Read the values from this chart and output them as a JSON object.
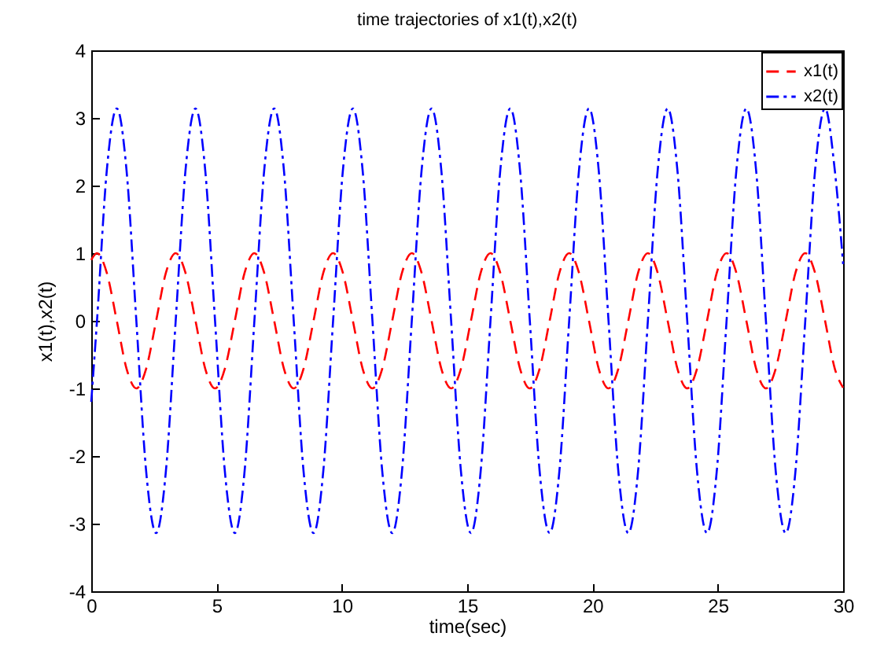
{
  "chart_data": {
    "type": "line",
    "title": "time trajectories of x1(t),x2(t)",
    "xlabel": "time(sec)",
    "ylabel": "x1(t),x2(t)",
    "x": [
      0,
      0.23,
      0.62,
      1.02,
      1.41,
      1.8,
      2.19,
      2.59,
      2.98,
      3.37,
      3.76,
      4.16,
      4.55,
      4.94,
      5.33,
      5.73,
      6.12,
      6.51,
      6.9,
      7.3,
      7.69,
      8.08,
      8.47,
      8.87,
      9.26,
      9.65,
      10.04,
      10.44,
      10.83,
      11.22,
      11.61,
      12.01,
      12.4,
      12.79,
      13.18,
      13.58,
      13.97,
      14.36,
      14.75,
      15.15,
      15.54,
      15.93,
      16.32,
      16.72,
      17.11,
      17.5,
      17.89,
      18.29,
      18.68,
      19.07,
      19.46,
      19.86,
      20.25,
      20.64,
      21.03,
      21.43,
      21.82,
      22.21,
      22.6,
      23.0,
      23.39,
      23.78,
      24.17,
      24.57,
      24.96,
      25.35,
      25.74,
      26.14,
      26.53,
      26.92,
      27.31,
      27.71,
      28.1,
      28.49,
      28.88,
      29.28,
      29.67,
      30
    ],
    "series": [
      {
        "name": "x1(t)",
        "color": "#ff0000",
        "line_style": "dashed",
        "values": [
          0.9,
          1,
          0.71,
          0,
          -0.71,
          -1,
          -0.71,
          0,
          0.71,
          1,
          0.71,
          0,
          -0.71,
          -1,
          -0.71,
          0,
          0.71,
          1,
          0.71,
          0,
          -0.71,
          -1,
          -0.71,
          0,
          0.71,
          1,
          0.71,
          0,
          -0.71,
          -1,
          -0.71,
          0,
          0.71,
          1,
          0.71,
          0,
          -0.71,
          -1,
          -0.71,
          0,
          0.71,
          1,
          0.71,
          0,
          -0.71,
          -1,
          -0.71,
          0,
          0.71,
          1,
          0.71,
          0,
          -0.71,
          -1,
          -0.71,
          0,
          0.71,
          1,
          0.71,
          0,
          -0.71,
          -1,
          -0.71,
          0,
          0.71,
          1,
          0.71,
          0,
          -0.71,
          -1,
          -0.71,
          0,
          0.71,
          1,
          0.71,
          0,
          -0.71,
          -0.99
        ]
      },
      {
        "name": "x2(t)",
        "color": "#0000ff",
        "line_style": "dashdot",
        "values": [
          -1.2,
          0,
          2.22,
          3.14,
          2.22,
          0,
          -2.22,
          -3.14,
          -2.22,
          0,
          2.22,
          3.14,
          2.22,
          0,
          -2.22,
          -3.14,
          -2.22,
          0,
          2.22,
          3.14,
          2.22,
          0,
          -2.22,
          -3.14,
          -2.22,
          0,
          2.22,
          3.14,
          2.22,
          0,
          -2.22,
          -3.14,
          -2.22,
          0,
          2.22,
          3.14,
          2.22,
          0,
          -2.22,
          -3.14,
          -2.22,
          0,
          2.22,
          3.14,
          2.22,
          0,
          -2.22,
          -3.14,
          -2.22,
          0,
          2.22,
          3.14,
          2.22,
          0,
          -2.22,
          -3.14,
          -2.22,
          0,
          2.22,
          3.14,
          2.22,
          0,
          -2.22,
          -3.14,
          -2.22,
          0,
          2.22,
          3.14,
          2.22,
          0,
          -2.22,
          -3.14,
          -2.22,
          0,
          2.22,
          3.14,
          2.22,
          0.84
        ]
      }
    ],
    "xlim": [
      0,
      30
    ],
    "xticks": [
      0,
      5,
      10,
      15,
      20,
      25,
      30
    ],
    "ylim": [
      -4,
      4
    ],
    "yticks": [
      -4,
      -3,
      -2,
      -1,
      0,
      1,
      2,
      3,
      4
    ],
    "legend": "top right",
    "grid": false
  }
}
